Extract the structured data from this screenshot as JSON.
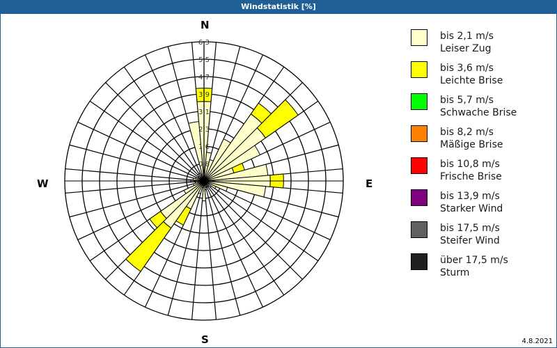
{
  "window": {
    "title": "Windstatistik [%]"
  },
  "compass": {
    "n": "N",
    "e": "E",
    "s": "S",
    "w": "W"
  },
  "footer": {
    "date": "4.8.2021"
  },
  "legend": [
    {
      "range": "bis 2,1 m/s",
      "name": "Leiser Zug",
      "color": "#ffffcc"
    },
    {
      "range": "bis 3,6 m/s",
      "name": "Leichte Brise",
      "color": "#ffff00"
    },
    {
      "range": "bis 5,7 m/s",
      "name": "Schwache Brise",
      "color": "#00ff00"
    },
    {
      "range": "bis 8,2 m/s",
      "name": "Mäßige Brise",
      "color": "#ff8000"
    },
    {
      "range": "bis 10,8 m/s",
      "name": "Frische Brise",
      "color": "#ff0000"
    },
    {
      "range": "bis 13,9 m/s",
      "name": "Starker Wind",
      "color": "#800080"
    },
    {
      "range": "bis 17,5 m/s",
      "name": "Steifer Wind",
      "color": "#606060"
    },
    {
      "range": "über 17,5 m/s",
      "name": "Sturm",
      "color": "#202020"
    }
  ],
  "chart_data": {
    "type": "wind-rose",
    "title": "Windstatistik [%]",
    "ring_labels": [
      "0,8",
      "1,6",
      "2,3",
      "3,1",
      "3,9",
      "4,7",
      "5,5",
      "6,3"
    ],
    "rmax": 6.3,
    "sector_width_deg": 10,
    "directions_deg": [
      0,
      10,
      20,
      30,
      40,
      50,
      60,
      70,
      80,
      90,
      100,
      110,
      120,
      130,
      140,
      150,
      160,
      170,
      180,
      190,
      200,
      210,
      220,
      230,
      240,
      250,
      260,
      270,
      280,
      290,
      300,
      310,
      320,
      330,
      340,
      350
    ],
    "series": [
      {
        "name": "bis 2,1 m/s",
        "values": [
          3.6,
          1.3,
          1.0,
          2.1,
          3.7,
          3.4,
          2.8,
          1.4,
          2.9,
          3.0,
          2.8,
          1.1,
          0.6,
          0.4,
          0.3,
          0.3,
          0.3,
          0.4,
          0.9,
          0.3,
          0.6,
          1.4,
          2.6,
          2.4,
          1.0,
          0.5,
          0.4,
          0.6,
          0.5,
          0.4,
          0.3,
          0.3,
          0.4,
          0.4,
          0.3,
          2.7
        ]
      },
      {
        "name": "bis 3,6 m/s",
        "values": [
          0.6,
          0,
          0,
          0,
          0.6,
          1.8,
          0,
          0.5,
          0,
          0.6,
          0,
          0,
          0,
          0,
          0,
          0,
          0,
          0,
          0,
          0,
          0,
          0.8,
          2.4,
          0.6,
          0,
          0,
          0,
          0,
          0,
          0,
          0,
          0,
          0,
          0,
          0,
          0
        ]
      },
      {
        "name": "bis 5,7 m/s",
        "values": [
          0,
          0,
          0,
          0,
          0,
          0,
          0,
          0,
          0,
          0,
          0,
          0,
          0,
          0,
          0,
          0,
          0,
          0,
          0,
          0,
          0,
          0,
          0,
          0,
          0,
          0,
          0,
          0,
          0,
          0,
          0,
          0,
          0,
          0,
          0,
          0
        ]
      }
    ]
  }
}
